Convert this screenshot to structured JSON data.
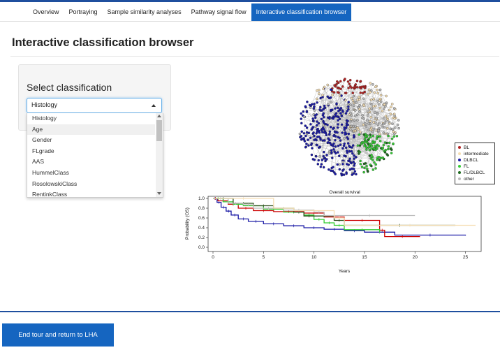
{
  "nav": {
    "tabs": [
      "Overview",
      "Portraying",
      "Sample similarity analyses",
      "Pathway signal flow",
      "Interactive classification browser"
    ],
    "active_index": 4
  },
  "page_title": "Interactive classification browser",
  "panel": {
    "title": "Select classification",
    "select_value": "Histology",
    "options": [
      "Histology",
      "Age",
      "Gender",
      "FLgrade",
      "AAS",
      "HummelClass",
      "RosolowskiClass",
      "RentinkClass"
    ],
    "highlighted_option": "Age"
  },
  "network": {
    "legend": [
      {
        "label": "BL",
        "color": "#b22222"
      },
      {
        "label": "intermediate",
        "color": "#f5deb3"
      },
      {
        "label": "DLBCL",
        "color": "#1a1aa6"
      },
      {
        "label": "FL",
        "color": "#33cc33"
      },
      {
        "label": "FL/DLBCL",
        "color": "#1f6b1f"
      },
      {
        "label": "other",
        "color": "#bbbbbb"
      }
    ]
  },
  "chart_data": {
    "type": "line",
    "title": "Overall survival",
    "xlabel": "Years",
    "ylabel": "Probability (OS)",
    "xlim": [
      0,
      26
    ],
    "ylim": [
      0,
      1
    ],
    "xticks": [
      0,
      5,
      10,
      15,
      20,
      25
    ],
    "yticks": [
      "0.0",
      "0.2",
      "0.4",
      "0.6",
      "0.8",
      "1.0"
    ],
    "series": [
      {
        "color": "#1a1aa6",
        "x": [
          0,
          0.4,
          0.8,
          1.3,
          1.8,
          2.5,
          3.5,
          5,
          7,
          9,
          11,
          13,
          15,
          18,
          25
        ],
        "y": [
          1.0,
          0.92,
          0.82,
          0.74,
          0.66,
          0.58,
          0.53,
          0.48,
          0.44,
          0.4,
          0.37,
          0.34,
          0.31,
          0.25,
          0.24
        ]
      },
      {
        "color": "#cc0000",
        "x": [
          0,
          0.5,
          1.5,
          2.5,
          4,
          6,
          9,
          11,
          13,
          16.5,
          17,
          20.5
        ],
        "y": [
          1.0,
          0.95,
          0.88,
          0.8,
          0.75,
          0.73,
          0.7,
          0.62,
          0.55,
          0.35,
          0.22,
          0.22
        ]
      },
      {
        "color": "#33cc33",
        "x": [
          0,
          1,
          2,
          3,
          5,
          7,
          9,
          10,
          11,
          12,
          13,
          16.5
        ],
        "y": [
          1.0,
          0.93,
          0.88,
          0.85,
          0.78,
          0.72,
          0.66,
          0.57,
          0.5,
          0.45,
          0.36,
          0.3
        ]
      },
      {
        "color": "#2f4f1f",
        "x": [
          0,
          2,
          4,
          6,
          8,
          9,
          10,
          12,
          13,
          24
        ],
        "y": [
          1.0,
          0.9,
          0.85,
          0.8,
          0.72,
          0.64,
          0.64,
          0.55,
          0.45,
          0.45
        ]
      },
      {
        "color": "#bbbbbb",
        "x": [
          0,
          1.5,
          3,
          4,
          7,
          10,
          11,
          20
        ],
        "y": [
          1.0,
          0.9,
          0.87,
          0.8,
          0.76,
          0.72,
          0.65,
          0.65
        ]
      },
      {
        "color": "#f5deb3",
        "x": [
          0,
          6,
          8,
          12,
          13,
          26
        ],
        "y": [
          1.0,
          0.8,
          0.75,
          0.6,
          0.45,
          0.45
        ]
      }
    ]
  },
  "footer": {
    "end_button": "End tour and return to LHA"
  }
}
